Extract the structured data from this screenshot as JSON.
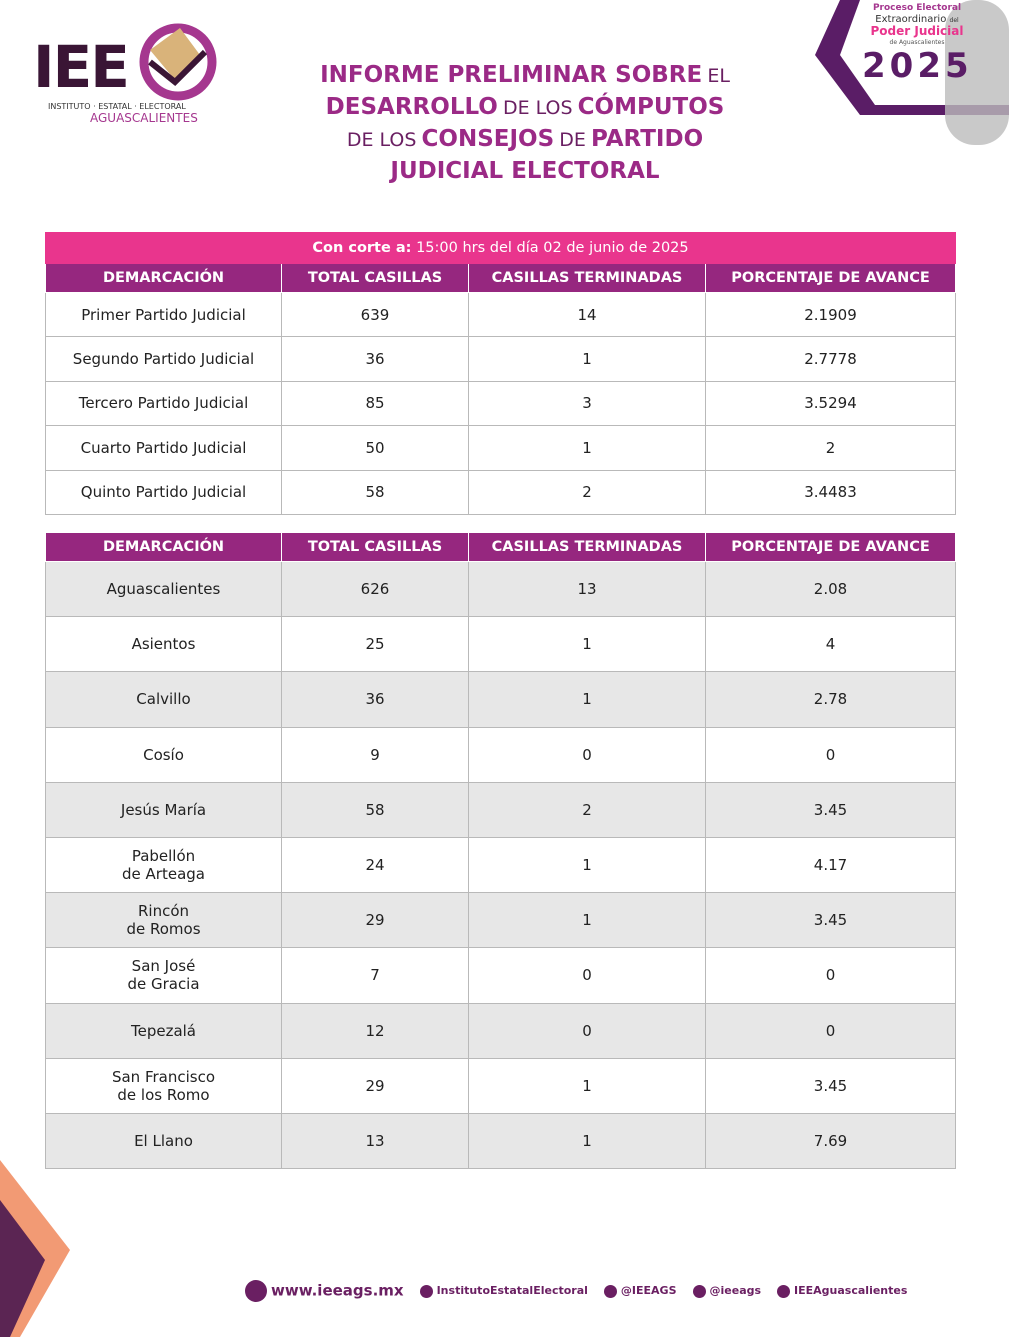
{
  "header": {
    "logo": {
      "acronym": "IEE",
      "name": "INSTITUTO · ESTATAL · ELECTORAL",
      "state": "AGUASCALIENTES"
    },
    "badge": {
      "line1": "Proceso Electoral",
      "line2": "Extraordinario",
      "line2b": "del",
      "line3": "Poder Judicial",
      "line4a": "de",
      "line4": "Aguascalientes",
      "year": "2025"
    },
    "title": [
      "INFORME PRELIMINAR SOBRE",
      "EL",
      "DESARROLLO",
      "DE LOS",
      "CÓMPUTOS",
      "DE LOS",
      "CONSEJOS",
      "DE",
      "PARTIDO",
      "JUDICIAL ELECTORAL"
    ]
  },
  "cutoff": {
    "label": "Con corte a:",
    "text": "15:00 hrs del día 02 de junio de 2025"
  },
  "table1": {
    "columns": [
      "DEMARCACIÓN",
      "TOTAL CASILLAS",
      "CASILLAS TERMINADAS",
      "PORCENTAJE DE AVANCE"
    ],
    "rows": [
      [
        "Primer Partido Judicial",
        639,
        14,
        2.1909
      ],
      [
        "Segundo Partido Judicial",
        36,
        1,
        2.7778
      ],
      [
        "Tercero Partido Judicial",
        85,
        3,
        3.5294
      ],
      [
        "Cuarto Partido Judicial",
        50,
        1,
        2
      ],
      [
        "Quinto Partido Judicial",
        58,
        2,
        3.4483
      ]
    ]
  },
  "table2": {
    "columns": [
      "DEMARCACIÓN",
      "TOTAL CASILLAS",
      "CASILLAS TERMINADAS",
      "PORCENTAJE DE AVANCE"
    ],
    "rows": [
      [
        "Aguascalientes",
        626,
        13,
        2.08
      ],
      [
        "Asientos",
        25,
        1,
        4
      ],
      [
        "Calvillo",
        36,
        1,
        2.78
      ],
      [
        "Cosío",
        9,
        0,
        0
      ],
      [
        "Jesús María",
        58,
        2,
        3.45
      ],
      [
        "Pabellón\nde Arteaga",
        24,
        1,
        4.17
      ],
      [
        "Rincón\nde Romos",
        29,
        1,
        3.45
      ],
      [
        "San José\nde Gracia",
        7,
        0,
        0
      ],
      [
        "Tepezalá",
        12,
        0,
        0
      ],
      [
        "San Francisco\nde los Romo",
        29,
        1,
        3.45
      ],
      [
        "El Llano",
        13,
        1,
        7.69
      ]
    ]
  },
  "footer": {
    "website": "www.ieeags.mx",
    "facebook": "InstitutoEstatalElectoral",
    "x": "@IEEAGS",
    "instagram": "@ieeags",
    "tiktok": "IEEAguascalientes"
  }
}
